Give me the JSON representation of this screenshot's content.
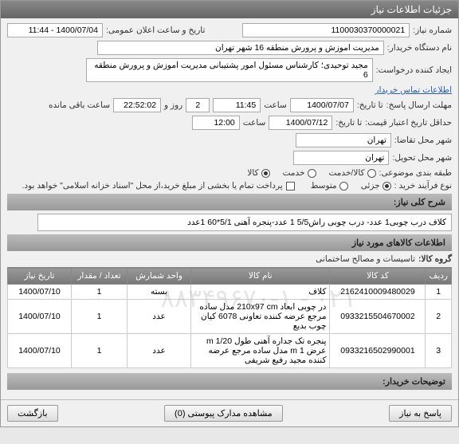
{
  "window": {
    "title": "جزئیات اطلاعات نیاز"
  },
  "header": {
    "req_no_label": "شماره نیاز:",
    "req_no": "1100030370000021",
    "ann_dt_label": "تاریخ و ساعت اعلان عمومی:",
    "ann_dt": "1400/07/04 - 11:44",
    "buyer_label": "نام دستگاه خریدار:",
    "buyer": "مدیریت اموزش و پرورش منطقه 16 شهر تهران",
    "creator_label": "ایجاد کننده درخواست:",
    "creator": "مجید توحیدی؛ کارشناس مسئول امور پشتیبانی مدیریت اموزش و پرورش منطقه 6",
    "creator_link": "اطلاعات تماس خریدار",
    "deadline_label": "مهلت ارسال پاسخ:",
    "deadline_to": "تا تاریخ:",
    "deadline_date": "1400/07/07",
    "time_lbl": "ساعت",
    "deadline_time": "11:45",
    "remain_days": "2",
    "remain_day_lbl": "روز و",
    "remain_time": "22:52:02",
    "remain_lbl": "ساعت باقی مانده",
    "valid_label": "حداقل تاریخ اعتبار قیمت:",
    "valid_to": "تا تاریخ:",
    "valid_date": "1400/07/12",
    "valid_time": "12:00",
    "city_req_label": "شهر محل تقاضا:",
    "city_req": "تهران",
    "city_del_label": "شهر محل تحویل:",
    "city_del": "تهران",
    "cat_label": "طبقه بندی موضوعی:",
    "cat_opts": [
      "کالا/خدمت",
      "خدمت",
      "کالا"
    ],
    "cat_sel": 2,
    "proc_label": "نوع فرآیند خرید :",
    "proc_opts": [
      "جزئی",
      "متوسط"
    ],
    "proc_sel": 0,
    "pay_chk_label": "پرداخت تمام یا بخشی از مبلغ خرید،از محل \"اسناد خزانه اسلامی\" خواهد بود."
  },
  "desc": {
    "sect": "شرح کلی نیاز:",
    "text": "کلاف درب چوبی1 عدد- درب چوبی راش5/5  1 عدد-پنجره آهنی 5/1*60  1عدد",
    "items_sect": "اطلاعات کالاهای مورد نیاز",
    "group_label": "گروه کالا:",
    "group": "تاسیسات و مصالح ساختمانی"
  },
  "table": {
    "cols": [
      "ردیف",
      "کد کالا",
      "نام کالا",
      "واحد شمارش",
      "تعداد / مقدار",
      "تاریخ نیاز"
    ],
    "rows": [
      {
        "i": "1",
        "code": "2162410009480029",
        "name": "کلاف",
        "unit": "بسته",
        "qty": "1",
        "date": "1400/07/10"
      },
      {
        "i": "2",
        "code": "0933215504670002",
        "name": "در چوبی ابعاد 210x97 cm مدل ساده مرجع عرضه کننده تعاونی 6078 کیان چوب بدیع",
        "unit": "عدد",
        "qty": "1",
        "date": "1400/07/10"
      },
      {
        "i": "3",
        "code": "0933216502990001",
        "name": "پنجره تک جداره آهنی طول 1/20 m عرض 1 m مدل ساده مرجع عرضه کننده مجید رفیع شریفی",
        "unit": "عدد",
        "qty": "1",
        "date": "1400/07/10"
      }
    ]
  },
  "buyer_notes": {
    "label": "توضیحات خریدار:"
  },
  "footer": {
    "close": "بازگشت",
    "attach": "مشاهده مدارک پیوستی (0)",
    "reply": "پاسخ به نیاز"
  },
  "watermark": "۰۲۱ - ۸۸۳۴۹۶۷۰-۱",
  "colors": {
    "titlebar": "#6f6f6f",
    "th": "#858585"
  }
}
